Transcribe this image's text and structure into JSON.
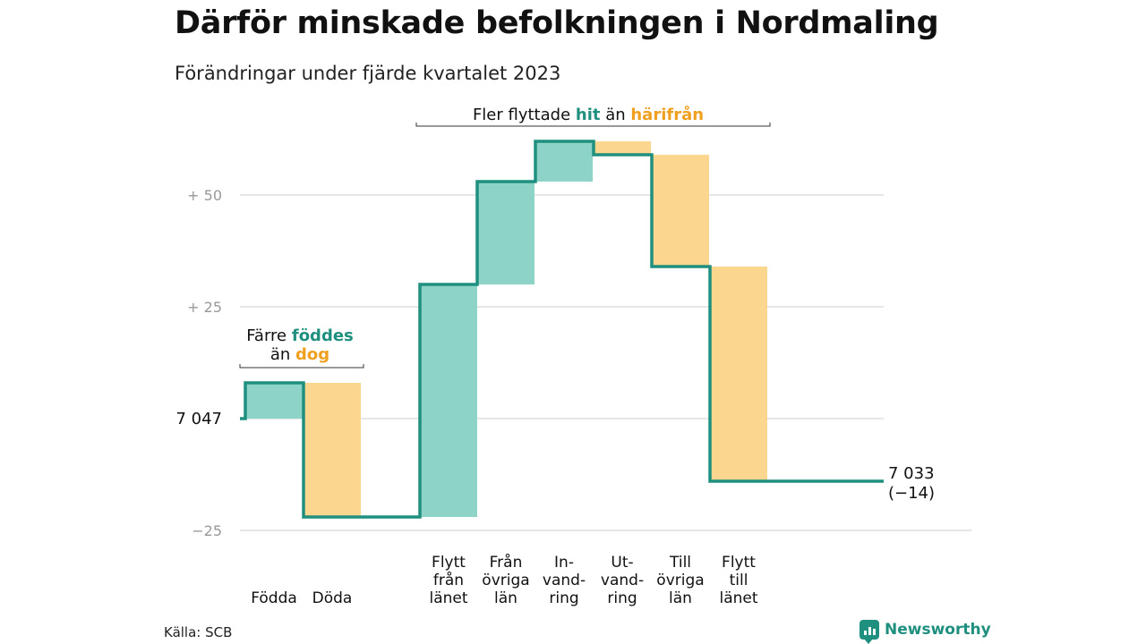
{
  "title": "Därför minskade befolkningen i Nordmaling",
  "subtitle": "Förändringar under fjärde kvartalet 2023",
  "source": "Källa: SCB",
  "brand": "Newsworthy",
  "colors": {
    "positive": "#8dd3c7",
    "negative": "#fbd68e",
    "line": "#1f8f7f",
    "accent_pos": "#1f8f7f",
    "accent_neg": "#f0a020",
    "grid": "#dddddd",
    "tick": "#999999"
  },
  "chart_data": {
    "type": "waterfall",
    "start_value": 7047,
    "start_label": "7  047",
    "end_label": [
      "7 033",
      "(−14)"
    ],
    "ylim": [
      -25,
      62
    ],
    "yticks": [
      {
        "value": 50,
        "label": "+  50"
      },
      {
        "value": 25,
        "label": "+  25"
      },
      {
        "value": -25,
        "label": "−25"
      }
    ],
    "steps": [
      {
        "label": [
          "Födda"
        ],
        "delta": 8
      },
      {
        "label": [
          "Döda"
        ],
        "delta": -30
      },
      {
        "label": [
          "Flytt",
          "från",
          "länet"
        ],
        "delta": 52
      },
      {
        "label": [
          "Från",
          "övriga",
          "län"
        ],
        "delta": 23
      },
      {
        "label": [
          "In-",
          "vand-",
          "ring"
        ],
        "delta": 9
      },
      {
        "label": [
          "Ut-",
          "vand-",
          "ring"
        ],
        "delta": -3
      },
      {
        "label": [
          "Till",
          "övriga",
          "län"
        ],
        "delta": -25
      },
      {
        "label": [
          "Flytt",
          "till",
          "länet"
        ],
        "delta": -48
      }
    ],
    "annotations": [
      {
        "parts": [
          {
            "text": "Färre ",
            "style": "plain"
          },
          {
            "text": "föddes",
            "style": "pos"
          }
        ],
        "parts2": [
          {
            "text": "än ",
            "style": "plain"
          },
          {
            "text": "dog",
            "style": "neg"
          }
        ]
      },
      {
        "parts": [
          {
            "text": "Fler flyttade ",
            "style": "plain"
          },
          {
            "text": "hit",
            "style": "pos"
          },
          {
            "text": " än ",
            "style": "plain"
          },
          {
            "text": "härifrån",
            "style": "neg"
          }
        ]
      }
    ]
  }
}
